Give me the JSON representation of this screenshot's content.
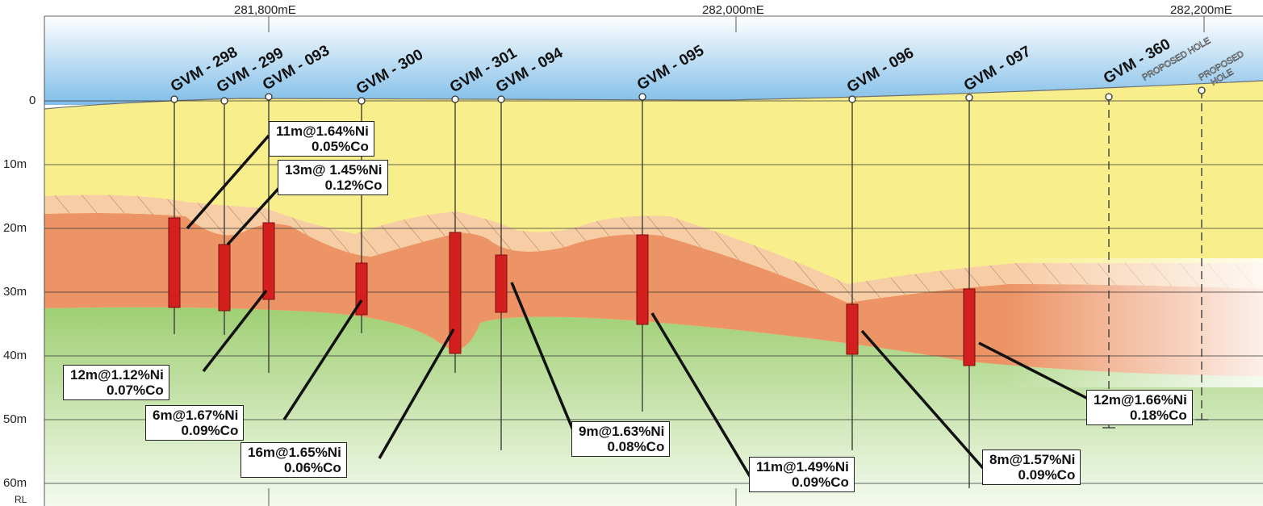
{
  "eastings": [
    "281,800mE",
    "282,000mE",
    "282,200mE"
  ],
  "rl_labels": [
    "0",
    "10m",
    "20m",
    "30m",
    "40m",
    "50m",
    "60m",
    "RL"
  ],
  "holes": [
    {
      "id": "GVM - 298"
    },
    {
      "id": "GVM - 299"
    },
    {
      "id": "GVM - 093"
    },
    {
      "id": "GVM - 300"
    },
    {
      "id": "GVM - 301"
    },
    {
      "id": "GVM - 094"
    },
    {
      "id": "GVM - 095"
    },
    {
      "id": "GVM - 096"
    },
    {
      "id": "GVM - 097"
    },
    {
      "id": "GVM - 360",
      "note": "PROPOSED HOLE"
    },
    {
      "note_line1": "PROPOSED",
      "note_line2": "HOLE"
    }
  ],
  "intercepts": [
    {
      "line1": "11m@1.64%Ni",
      "line2": "0.05%Co"
    },
    {
      "line1": "13m@ 1.45%Ni",
      "line2": "0.12%Co"
    },
    {
      "line1": "12m@1.12%Ni",
      "line2": "0.07%Co"
    },
    {
      "line1": "6m@1.67%Ni",
      "line2": "0.09%Co"
    },
    {
      "line1": "16m@1.65%Ni",
      "line2": "0.06%Co"
    },
    {
      "line1": "9m@1.63%Ni",
      "line2": "0.08%Co"
    },
    {
      "line1": "11m@1.49%Ni",
      "line2": "0.09%Co"
    },
    {
      "line1": "8m@1.57%Ni",
      "line2": "0.09%Co"
    },
    {
      "line1": "12m@1.66%Ni",
      "line2": "0.18%Co"
    }
  ],
  "colors": {
    "sky": "#8cc4ea",
    "limonite_yellow": "#f7ef8e",
    "transition_hatch": "#f5c9a0",
    "saprolite_orange": "#ec9466",
    "bedrock_green": "#b5d88a",
    "ore_red": "#d41f1f"
  }
}
